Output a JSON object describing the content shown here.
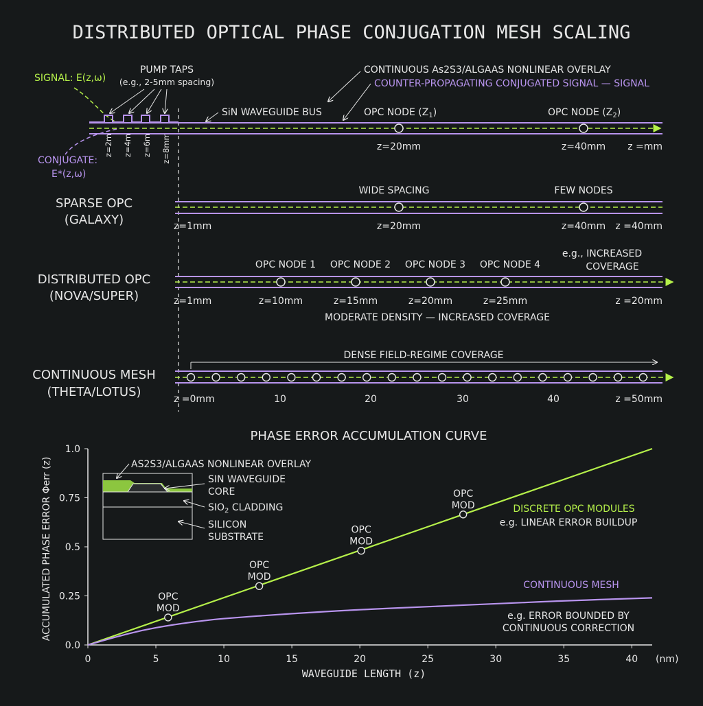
{
  "title": "DISTRIBUTED OPTICAL PHASE CONJUGATION MESH SCALING",
  "colors": {
    "background": "#16191a",
    "green": "#b5f04a",
    "purple": "#b894ee",
    "text": "#e6e6e6"
  },
  "top": {
    "signal_label": "SIGNAL: E(z,ω)",
    "conjugate_label_1": "CONJUGATE:",
    "conjugate_label_2": "E*(z,ω)",
    "pump_taps": "PUMP TAPS",
    "pump_taps_note": "(e.g., 2-5mm spacing)",
    "tap_z": [
      "z=2m",
      "z=4m",
      "z=6m",
      "z=8mm"
    ],
    "overlay_label": "CONTINUOUS As2S3/ALGAAS NONLINEAR OVERLAY",
    "counter_label": "COUNTER-PROPAGATING CONJUGATED SIGNAL — SIGNAL",
    "bus_label": "SiN WAVEGUIDE BUS",
    "node1_label": "OPC NODE (Z",
    "node1_sub": "1",
    "node2_label": "OPC NODE (Z",
    "node2_sub": "2",
    "close_paren": ")",
    "z1": "z=20mm",
    "z2": "z=40mm",
    "zend": "z =mm"
  },
  "sparse": {
    "label_1": "SPARSE OPC",
    "label_2": "(GALAXY)",
    "note_1": "WIDE SPACING",
    "note_2": "FEW NODES",
    "z_start": "z=1mm",
    "z_mid": "z=20mm",
    "z_right": "z=40mm",
    "z_end": "z =40mm"
  },
  "distributed": {
    "label_1": "DISTRIBUTED OPC",
    "label_2": "(NOVA/SUPER)",
    "nodes": [
      "OPC NODE 1",
      "OPC NODE 2",
      "OPC NODE 3",
      "OPC NODE 4"
    ],
    "node_z": [
      "z=10mm",
      "z=15mm",
      "z=20mm",
      "z=25mm"
    ],
    "z_start": "z=1mm",
    "z_end": "z =20mm",
    "note_1": "e.g., INCREASED",
    "note_2": "COVERAGE",
    "caption": "MODERATE DENSITY — INCREASED COVERAGE"
  },
  "continuous": {
    "label_1": "CONTINUOUS MESH",
    "label_2": "(THETA/LOTUS)",
    "caption": "DENSE FIELD-REGIME COVERAGE",
    "z_start": "z =0mm",
    "ticks": [
      "10",
      "20",
      "30",
      "40"
    ],
    "z_end": "z =50mm"
  },
  "chart_data": {
    "type": "line",
    "title": "PHASE ERROR ACCUMULATION CURVE",
    "xlabel": "WAVEGUIDE LENGTH (z)",
    "ylabel": "ACCUMULATED PHASE ERROR Φerr (z)",
    "x_unit": "(nm)",
    "xlim": [
      0,
      41.5
    ],
    "ylim": [
      0,
      1.0
    ],
    "x_ticks": [
      "0",
      "5",
      "10",
      "15",
      "20",
      "25",
      "30",
      "35",
      "40"
    ],
    "y_ticks": [
      "0.0",
      "0.25",
      "0.5",
      "0.75",
      "1.0"
    ],
    "series": [
      {
        "name": "DISCRETE OPC MODULES",
        "note": "e.g. LINEAR ERROR BUILDUP",
        "x": [
          0,
          41.5
        ],
        "y": [
          0,
          1.0
        ]
      },
      {
        "name": "CONTINUOUS MESH",
        "note_1": "e.g. ERROR BOUNDED BY",
        "note_2": "CONTINUOUS CORRECTION",
        "x": [
          0,
          2,
          4,
          6,
          8,
          10,
          15,
          20,
          25,
          30,
          35,
          41.5
        ],
        "y": [
          0,
          0.04,
          0.075,
          0.1,
          0.12,
          0.135,
          0.16,
          0.18,
          0.195,
          0.21,
          0.225,
          0.24
        ]
      }
    ],
    "markers": [
      {
        "x": 5.9,
        "y": 0.14
      },
      {
        "x": 12.6,
        "y": 0.3
      },
      {
        "x": 20.1,
        "y": 0.48
      },
      {
        "x": 27.6,
        "y": 0.665
      }
    ],
    "marker_label_1": "OPC",
    "marker_label_2": "MOD"
  },
  "inset": {
    "overlay": "AS2S3/ALGAAS NONLINEAR OVERLAY",
    "core_1": "SIN WAVEGUIDE",
    "core_2": "CORE",
    "cladding": "SIO",
    "cladding_sub": "2",
    "cladding_rest": " CLADDING",
    "substrate_1": "SILICON",
    "substrate_2": "SUBSTRATE"
  }
}
